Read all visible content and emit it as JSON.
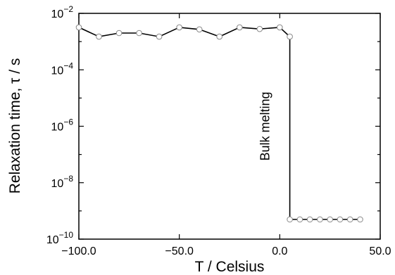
{
  "chart_data": {
    "type": "line",
    "xlabel": "T / Celsius",
    "ylabel": "Relaxation time, τ / s",
    "xlim": [
      -100,
      50
    ],
    "ylim": [
      1e-10,
      0.01
    ],
    "yscale": "log",
    "xticks": [
      {
        "value": -100,
        "label": "−100.0"
      },
      {
        "value": -50,
        "label": "−50.0"
      },
      {
        "value": 0,
        "label": "0.0"
      },
      {
        "value": 50,
        "label": "50.0"
      }
    ],
    "yticks": [
      {
        "value": 1e-10,
        "base": "10",
        "exp": "−10"
      },
      {
        "value": 1e-08,
        "base": "10",
        "exp": "−8"
      },
      {
        "value": 1e-06,
        "base": "10",
        "exp": "−6"
      },
      {
        "value": 0.0001,
        "base": "10",
        "exp": "−4"
      },
      {
        "value": 0.01,
        "base": "10",
        "exp": "−2"
      }
    ],
    "annotation": {
      "text": "Bulk melting",
      "x": 7,
      "y": 1e-06
    },
    "grid": false,
    "line_color": "#000000",
    "marker_color": "#888888",
    "series": [
      {
        "x": [
          -100,
          -90,
          -80,
          -70,
          -60,
          -50,
          -40,
          -30,
          -20,
          -10,
          0,
          5,
          5,
          10,
          15,
          20,
          25,
          30,
          35,
          40
        ],
        "y": [
          0.0032,
          0.0015,
          0.002,
          0.002,
          0.0015,
          0.0032,
          0.0027,
          0.0015,
          0.0032,
          0.0028,
          0.0032,
          0.0015,
          5e-10,
          5e-10,
          5e-10,
          5e-10,
          5e-10,
          5e-10,
          5e-10,
          5e-10
        ],
        "markers": [
          true,
          true,
          true,
          true,
          true,
          true,
          true,
          true,
          true,
          true,
          true,
          true,
          true,
          true,
          true,
          true,
          true,
          true,
          true,
          true
        ]
      }
    ]
  }
}
